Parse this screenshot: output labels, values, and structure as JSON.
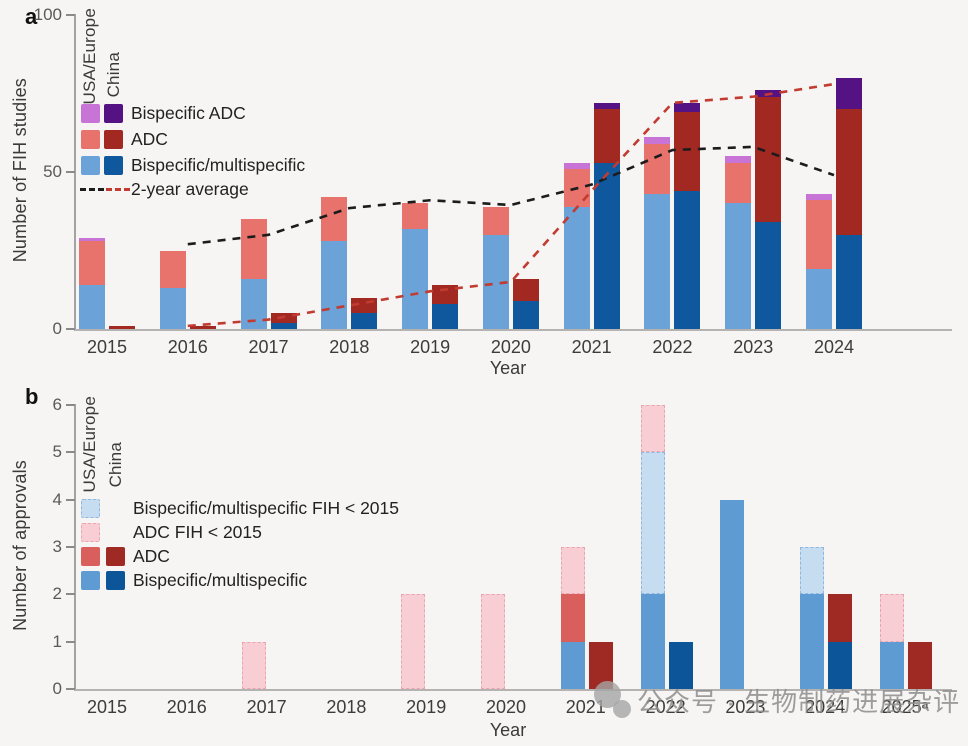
{
  "panel_a": {
    "label": "a",
    "y_title": "Number of FIH studies",
    "x_title": "Year",
    "legend": {
      "col1": "USA/Europe",
      "col2": "China",
      "rows": [
        "Bispecific ADC",
        "ADC",
        "Bispecific/multispecific",
        "2-year average"
      ]
    }
  },
  "panel_b": {
    "label": "b",
    "y_title": "Number of approvals",
    "x_title": "Year",
    "legend": {
      "col1": "USA/Europe",
      "col2": "China",
      "rows": [
        "Bispecific/multispecific FIH < 2015",
        "ADC FIH < 2015",
        "ADC",
        "Bispecific/multispecific"
      ]
    }
  },
  "watermark": {
    "icon": "chat-bubbles-icon",
    "text": "公众号 · 生物制药进展杂评"
  },
  "colors": {
    "usa_europe_bispecific": "#6ba3d9",
    "usa_europe_adc": "#e8726c",
    "usa_europe_bispecific_adc": "#c873d6",
    "china_bispecific": "#10589d",
    "china_adc": "#a22822",
    "china_bispecific_adc": "#551282",
    "avg_line_usa_europe": "#1c1c1c",
    "avg_line_china": "#c23b31"
  },
  "chart_data": [
    {
      "panel": "a",
      "type": "bar",
      "stacked": true,
      "title": "",
      "ylabel": "Number of FIH studies",
      "xlabel": "Year",
      "ylim": [
        0,
        100
      ],
      "yticks": [
        0,
        50,
        100
      ],
      "grid": false,
      "legend_position": "upper-left",
      "categories": [
        2015,
        2016,
        2017,
        2018,
        2019,
        2020,
        2021,
        2022,
        2023,
        2024
      ],
      "x_labels": [
        "2015",
        "2016",
        "2017",
        "2018",
        "2019",
        "2020",
        "2021",
        "2022",
        "2023",
        "2024"
      ],
      "series": [
        {
          "name": "USA/Europe Bispecific/multispecific",
          "group": "usa_europe",
          "color": "#6ba3d9",
          "values": [
            14,
            13,
            16,
            28,
            32,
            30,
            39,
            43,
            40,
            19
          ]
        },
        {
          "name": "USA/Europe ADC",
          "group": "usa_europe",
          "color": "#e8726c",
          "values": [
            14,
            12,
            19,
            14,
            8,
            9,
            12,
            16,
            13,
            22
          ]
        },
        {
          "name": "USA/Europe Bispecific ADC",
          "group": "usa_europe",
          "color": "#c873d6",
          "values": [
            1,
            0,
            0,
            0,
            0,
            0,
            2,
            2,
            2,
            2
          ]
        },
        {
          "name": "China Bispecific/multispecific",
          "group": "china",
          "color": "#10589d",
          "values": [
            0,
            0,
            2,
            5,
            8,
            9,
            53,
            44,
            34,
            30
          ]
        },
        {
          "name": "China ADC",
          "group": "china",
          "color": "#a22822",
          "values": [
            1,
            1,
            3,
            5,
            6,
            7,
            17,
            25,
            40,
            40
          ]
        },
        {
          "name": "China Bispecific ADC",
          "group": "china",
          "color": "#551282",
          "values": [
            0,
            0,
            0,
            0,
            0,
            0,
            2,
            3,
            2,
            10
          ]
        }
      ],
      "lines": [
        {
          "name": "2-year average (USA/Europe)",
          "style": "dashed",
          "color": "#1c1c1c",
          "x": [
            2016,
            2017,
            2018,
            2019,
            2020,
            2021,
            2022,
            2023,
            2024
          ],
          "values": [
            27,
            30,
            38.5,
            41,
            39.5,
            46,
            57,
            58,
            49
          ]
        },
        {
          "name": "2-year average (China)",
          "style": "dashed",
          "color": "#c23b31",
          "x": [
            2016,
            2017,
            2018,
            2019,
            2020,
            2021,
            2022,
            2023,
            2024
          ],
          "values": [
            1,
            3,
            7.5,
            12,
            15,
            44,
            72,
            74,
            78
          ]
        }
      ]
    },
    {
      "panel": "b",
      "type": "bar",
      "stacked": true,
      "title": "",
      "ylabel": "Number of approvals",
      "xlabel": "Year",
      "ylim": [
        0,
        6
      ],
      "yticks": [
        0,
        1,
        2,
        3,
        4,
        5,
        6
      ],
      "grid": false,
      "legend_position": "upper-left",
      "categories": [
        2015,
        2016,
        2017,
        2018,
        2019,
        2020,
        2021,
        2022,
        2023,
        2024,
        2025
      ],
      "x_labels": [
        "2015",
        "2016",
        "2017",
        "2018",
        "2019",
        "2020",
        "2021",
        "2022",
        "2023",
        "2024",
        "2025ᵃ"
      ],
      "series": [
        {
          "name": "USA/Europe Bispecific/multispecific",
          "group": "usa_europe",
          "color": "#5e9bd3",
          "values": [
            0,
            0,
            0,
            0,
            0,
            0,
            1,
            2,
            4,
            2,
            1
          ]
        },
        {
          "name": "USA/Europe ADC",
          "group": "usa_europe",
          "color": "#d95f5c",
          "values": [
            0,
            0,
            0,
            0,
            0,
            0,
            1,
            0,
            0,
            0,
            0
          ]
        },
        {
          "name": "USA/Europe Bispecific/multispecific FIH < 2015",
          "group": "usa_europe",
          "color": "#c6ddf1",
          "border": "#8fb8dc",
          "dashed": true,
          "values": [
            0,
            0,
            0,
            0,
            0,
            0,
            0,
            3,
            0,
            1,
            0
          ]
        },
        {
          "name": "USA/Europe ADC FIH < 2015",
          "group": "usa_europe",
          "color": "#f8cdd4",
          "border": "#e8a6b0",
          "dashed": true,
          "values": [
            0,
            0,
            1,
            0,
            2,
            2,
            1,
            1,
            0,
            0,
            1
          ]
        },
        {
          "name": "China Bispecific/multispecific",
          "group": "china",
          "color": "#0d5599",
          "values": [
            0,
            0,
            0,
            0,
            0,
            0,
            0,
            1,
            0,
            1,
            0
          ]
        },
        {
          "name": "China ADC",
          "group": "china",
          "color": "#9f2a23",
          "values": [
            0,
            0,
            0,
            0,
            0,
            0,
            1,
            0,
            0,
            1,
            1
          ]
        }
      ]
    }
  ]
}
